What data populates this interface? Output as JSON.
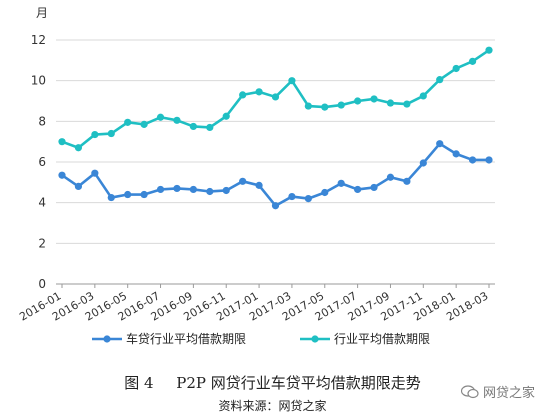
{
  "figure": {
    "number": "图 4",
    "title": "P2P 网贷行业车贷平均借款期限走势",
    "source": "资料来源：网贷之家",
    "watermark": "网贷之家"
  },
  "chart_data": {
    "type": "line",
    "ylabel": "月",
    "ylim": [
      0,
      12
    ],
    "yticks": [
      0,
      2,
      4,
      6,
      8,
      10,
      12
    ],
    "grid": true,
    "legend_position": "bottom",
    "x": [
      "2016-01",
      "2016-02",
      "2016-03",
      "2016-04",
      "2016-05",
      "2016-06",
      "2016-07",
      "2016-08",
      "2016-09",
      "2016-10",
      "2016-11",
      "2016-12",
      "2017-01",
      "2017-02",
      "2017-03",
      "2017-04",
      "2017-05",
      "2017-06",
      "2017-07",
      "2017-08",
      "2017-09",
      "2017-10",
      "2017-11",
      "2017-12",
      "2018-01",
      "2018-02",
      "2018-03"
    ],
    "xtick_labels": [
      "2016-01",
      "2016-03",
      "2016-05",
      "2016-07",
      "2016-09",
      "2016-11",
      "2017-01",
      "2017-03",
      "2017-05",
      "2017-07",
      "2017-09",
      "2017-11",
      "2018-01",
      "2018-03"
    ],
    "series": [
      {
        "name": "车贷行业平均借款期限",
        "color": "#3a86d6",
        "values": [
          5.35,
          4.8,
          5.45,
          4.25,
          4.4,
          4.4,
          4.65,
          4.7,
          4.65,
          4.55,
          4.6,
          5.05,
          4.85,
          3.85,
          4.3,
          4.2,
          4.5,
          4.95,
          4.65,
          4.75,
          5.25,
          5.05,
          5.95,
          6.9,
          6.4,
          6.1,
          6.1
        ]
      },
      {
        "name": "行业平均借款期限",
        "color": "#1fbfc3",
        "values": [
          7.0,
          6.7,
          7.35,
          7.4,
          7.95,
          7.85,
          8.2,
          8.05,
          7.75,
          7.7,
          8.25,
          9.3,
          9.45,
          9.2,
          10.0,
          8.75,
          8.7,
          8.8,
          9.0,
          9.1,
          8.9,
          8.85,
          9.25,
          10.05,
          10.6,
          10.95,
          11.5
        ]
      }
    ]
  }
}
